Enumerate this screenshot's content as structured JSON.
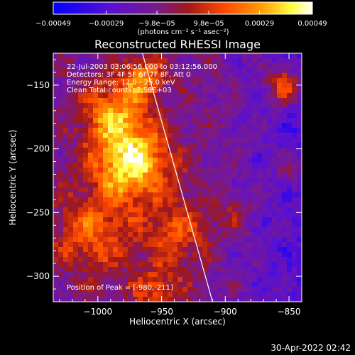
{
  "chart_data": {
    "type": "heatmap",
    "title": "Reconstructed RHESSI Image",
    "xlabel": "Heliocentric X (arcsec)",
    "ylabel": "Heliocentric Y (arcsec)",
    "xlim": [
      -1035,
      -840
    ],
    "ylim": [
      -320,
      -125
    ],
    "xticks": [
      {
        "value": -1000,
        "label": "−1000"
      },
      {
        "value": -950,
        "label": "−950"
      },
      {
        "value": -900,
        "label": "−900"
      },
      {
        "value": -850,
        "label": "−850"
      }
    ],
    "yticks": [
      {
        "value": -150,
        "label": "−150"
      },
      {
        "value": -200,
        "label": "−200"
      },
      {
        "value": -250,
        "label": "−250"
      },
      {
        "value": -300,
        "label": "−300"
      }
    ],
    "annotations": [
      "22-Jul-2003 03:06:56.000 to 03:12:56.000",
      "Detectors: 3F 4F 5F 6F 7F 8F, Att 0",
      "Energy Range: 12.0 - 25.0 keV",
      "Clean     Total counts: 7.58E+03"
    ],
    "peak_label": "Position of Peak = [-980,-211]",
    "peak": {
      "x": -980,
      "y": -211
    },
    "limb_line": [
      {
        "x": -965,
        "y": -125
      },
      {
        "x": -910,
        "y": -320
      }
    ],
    "colorbar": {
      "units": "(photons cm⁻² s⁻¹ asec⁻²)",
      "range": [
        -0.00049,
        0.00049
      ],
      "tick_labels": [
        "−0.00049",
        "−0.00029",
        "−9.8e−05",
        "9.8e−05",
        "0.00029",
        "0.00049"
      ],
      "tick_values": [
        -0.00049,
        -0.00029,
        -9.8e-05,
        9.8e-05,
        0.00029,
        0.00049
      ],
      "colors": [
        "#0000ff",
        "#6a00c8",
        "#7a1a8c",
        "#b02010",
        "#ff4a00",
        "#ff9a00",
        "#ffff40",
        "#ffffff"
      ]
    }
  },
  "timestamp": "30-Apr-2022 02:42"
}
